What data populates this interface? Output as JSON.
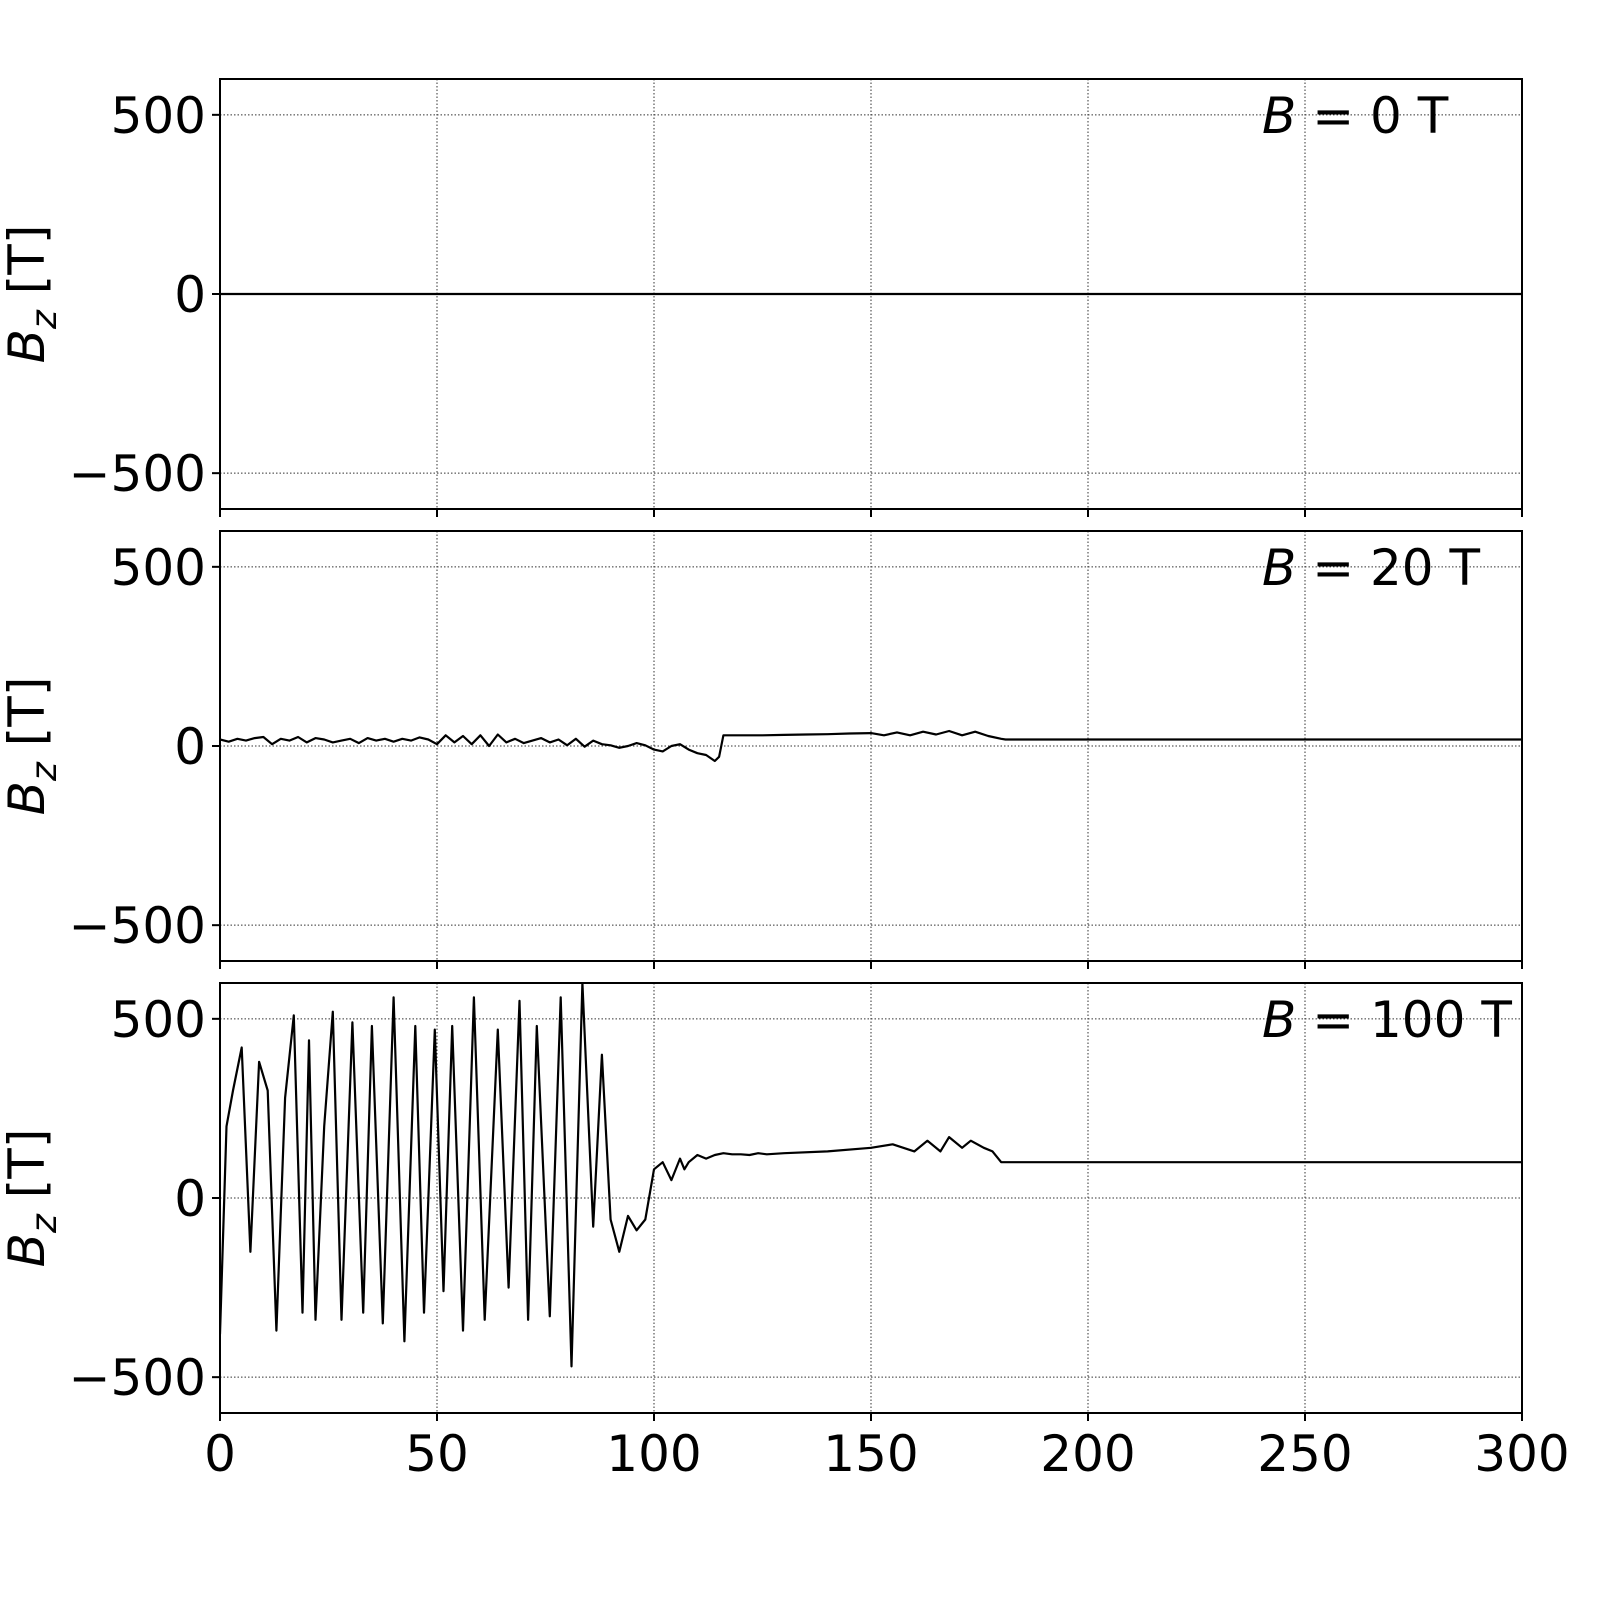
{
  "chart_data": [
    {
      "type": "line",
      "annotation": {
        "var": "B",
        "value": "0 T"
      },
      "ylabel": {
        "var": "B",
        "sub": "z",
        "unit": " [T]"
      },
      "xlim": [
        0,
        300
      ],
      "ylim": [
        -600,
        600
      ],
      "yticks": [
        -500,
        0,
        500
      ],
      "ytick_labels": [
        "−500",
        "0",
        "500"
      ],
      "xticks": [
        0,
        50,
        100,
        150,
        200,
        250,
        300
      ],
      "grid": true,
      "series": [
        {
          "x": [
            0,
            300
          ],
          "y": [
            0,
            0
          ]
        }
      ]
    },
    {
      "type": "line",
      "annotation": {
        "var": "B",
        "value": "20 T"
      },
      "ylabel": {
        "var": "B",
        "sub": "z",
        "unit": " [T]"
      },
      "xlim": [
        0,
        300
      ],
      "ylim": [
        -600,
        600
      ],
      "yticks": [
        -500,
        0,
        500
      ],
      "ytick_labels": [
        "−500",
        "0",
        "500"
      ],
      "xticks": [
        0,
        50,
        100,
        150,
        200,
        250,
        300
      ],
      "grid": true,
      "series": [
        {
          "x": [
            0,
            2,
            4,
            6,
            8,
            10,
            12,
            14,
            16,
            18,
            20,
            22,
            24,
            26,
            28,
            30,
            32,
            34,
            36,
            38,
            40,
            42,
            44,
            46,
            48,
            50,
            52,
            54,
            56,
            58,
            60,
            62,
            64,
            66,
            68,
            70,
            72,
            74,
            76,
            78,
            80,
            82,
            84,
            86,
            88,
            90,
            92,
            94,
            96,
            98,
            100,
            102,
            104,
            106,
            108,
            110,
            112,
            114,
            115,
            116,
            117,
            118,
            120,
            125,
            130,
            135,
            140,
            145,
            150,
            153,
            156,
            159,
            162,
            165,
            168,
            171,
            174,
            177,
            180,
            181,
            200,
            250,
            300
          ],
          "y": [
            18,
            12,
            20,
            15,
            22,
            25,
            5,
            20,
            15,
            25,
            10,
            22,
            18,
            10,
            15,
            20,
            8,
            22,
            15,
            20,
            12,
            20,
            15,
            24,
            18,
            5,
            30,
            10,
            28,
            5,
            30,
            0,
            32,
            10,
            20,
            8,
            15,
            22,
            10,
            18,
            2,
            20,
            -2,
            15,
            5,
            2,
            -5,
            0,
            8,
            2,
            -10,
            -15,
            0,
            5,
            -10,
            -20,
            -25,
            -42,
            -30,
            30,
            30,
            30,
            30,
            30,
            31,
            32,
            33,
            35,
            36,
            30,
            38,
            30,
            40,
            32,
            42,
            30,
            40,
            28,
            20,
            18,
            18,
            18,
            18
          ]
        }
      ]
    },
    {
      "type": "line",
      "annotation": {
        "var": "B",
        "value": "100 T"
      },
      "ylabel": {
        "var": "B",
        "sub": "z",
        "unit": " [T]"
      },
      "xlim": [
        0,
        300
      ],
      "ylim": [
        -600,
        600
      ],
      "yticks": [
        -500,
        0,
        500
      ],
      "ytick_labels": [
        "−500",
        "0",
        "500"
      ],
      "xticks": [
        0,
        50,
        100,
        150,
        200,
        250,
        300
      ],
      "xtick_labels": [
        "0",
        "50",
        "100",
        "150",
        "200",
        "250",
        "300"
      ],
      "grid": true,
      "series": [
        {
          "x": [
            0,
            1.5,
            3,
            5,
            7,
            9,
            11,
            13,
            15,
            17,
            19,
            20.5,
            22,
            24,
            26,
            28,
            30.5,
            33,
            35,
            37.5,
            40,
            42.5,
            45,
            47,
            49.5,
            51.5,
            53.5,
            56,
            58.5,
            61,
            64,
            66.5,
            69,
            71,
            73,
            76,
            78.5,
            81,
            83.5,
            86,
            88,
            90,
            92,
            94,
            96,
            98,
            100,
            102,
            104,
            106,
            107,
            108,
            110,
            112,
            114,
            116,
            118,
            120,
            122,
            124,
            126,
            130,
            140,
            150,
            155,
            160,
            163,
            166,
            168,
            171,
            173,
            176,
            178,
            180,
            200,
            250,
            300
          ],
          "y": [
            -380,
            200,
            300,
            420,
            -150,
            380,
            300,
            -370,
            280,
            510,
            -320,
            440,
            -340,
            200,
            520,
            -340,
            490,
            -320,
            480,
            -350,
            560,
            -400,
            480,
            -320,
            470,
            -260,
            480,
            -370,
            560,
            -340,
            470,
            -250,
            550,
            -340,
            480,
            -330,
            560,
            -470,
            600,
            -80,
            400,
            -60,
            -150,
            -50,
            -90,
            -60,
            80,
            100,
            50,
            110,
            80,
            100,
            120,
            110,
            120,
            125,
            122,
            122,
            120,
            125,
            122,
            125,
            130,
            140,
            150,
            130,
            160,
            130,
            170,
            140,
            160,
            140,
            130,
            100,
            100,
            100,
            100
          ]
        }
      ]
    }
  ]
}
